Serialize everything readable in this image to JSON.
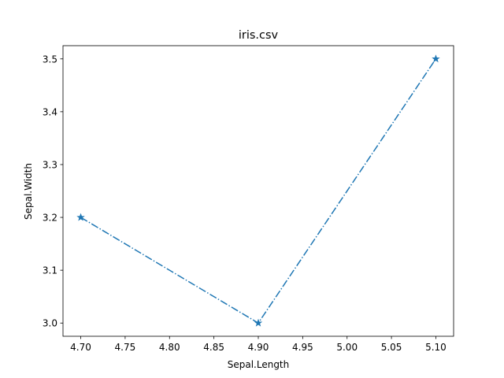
{
  "chart_data": {
    "type": "line",
    "title": "iris.csv",
    "xlabel": "Sepal.Length",
    "ylabel": "Sepal.Width",
    "xlim": [
      4.68,
      5.12
    ],
    "ylim": [
      2.975,
      3.525
    ],
    "x_ticks": [
      4.7,
      4.75,
      4.8,
      4.85,
      4.9,
      4.95,
      5.0,
      5.05,
      5.1
    ],
    "x_tick_labels": [
      "4.70",
      "4.75",
      "4.80",
      "4.85",
      "4.90",
      "4.95",
      "5.00",
      "5.05",
      "5.10"
    ],
    "y_ticks": [
      3.0,
      3.1,
      3.2,
      3.3,
      3.4,
      3.5
    ],
    "y_tick_labels": [
      "3.0",
      "3.1",
      "3.2",
      "3.3",
      "3.4",
      "3.5"
    ],
    "grid": false,
    "series": [
      {
        "x": [
          4.7,
          4.9,
          5.1
        ],
        "y": [
          3.2,
          3.0,
          3.5
        ],
        "color": "#1f77b4",
        "linestyle": "dashdot",
        "marker": "star"
      }
    ]
  }
}
